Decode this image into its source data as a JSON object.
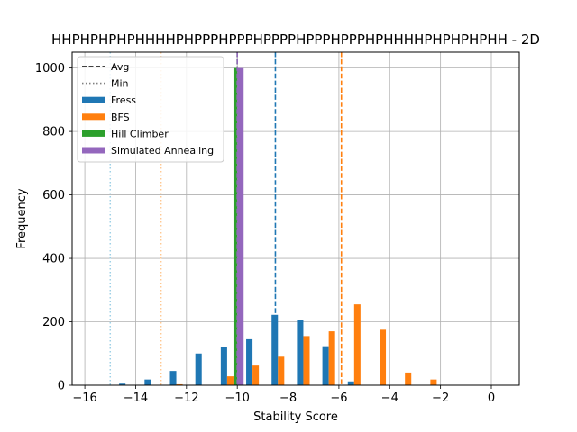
{
  "chart_data": {
    "type": "bar",
    "title": "HHPHPHPHPHHHHPHPPPHPPPHPPPPHPPPHPPPHPHHHHPHPHPHPHH - 2D",
    "xlabel": "Stability Score",
    "ylabel": "Frequency",
    "xlim": [
      -16.5,
      1.1
    ],
    "ylim": [
      0,
      1050
    ],
    "xticks": [
      -16,
      -14,
      -12,
      -10,
      -8,
      -6,
      -4,
      -2,
      0
    ],
    "yticks": [
      0,
      200,
      400,
      600,
      800,
      1000
    ],
    "grid": true,
    "legend_placement": "top-left",
    "bin_centers": [
      -14.4,
      -13.4,
      -12.4,
      -11.4,
      -10.4,
      -9.4,
      -8.4,
      -7.4,
      -6.4,
      -5.4,
      -4.4,
      -3.4,
      -2.4
    ],
    "series": [
      {
        "name": "Fress",
        "color": "#1f77b4",
        "x": [
          -14.4,
          -13.4,
          -12.4,
          -11.4,
          -10.4,
          -9.4,
          -8.4,
          -7.4,
          -6.4,
          -5.4
        ],
        "values": [
          5,
          18,
          45,
          100,
          120,
          145,
          222,
          205,
          123,
          12
        ]
      },
      {
        "name": "BFS",
        "color": "#ff7f0e",
        "x": [
          -12.4,
          -10.4,
          -9.4,
          -8.4,
          -7.4,
          -6.4,
          -5.4,
          -4.4,
          -3.4,
          -2.4
        ],
        "values": [
          3,
          28,
          62,
          90,
          155,
          170,
          255,
          175,
          40,
          18
        ]
      },
      {
        "name": "Hill Climber",
        "color": "#2ca02c",
        "x": [
          -10
        ],
        "values": [
          1000
        ]
      },
      {
        "name": "Simulated Annealing",
        "color": "#9467bd",
        "x": [
          -10
        ],
        "values": [
          1000
        ]
      }
    ],
    "avg_lines": [
      {
        "series": "Fress",
        "x": -8.5,
        "color": "#1f77b4"
      },
      {
        "series": "BFS",
        "x": -5.9,
        "color": "#ff7f0e"
      },
      {
        "series": "Hill Climber",
        "x": -10.0,
        "color": "#2ca02c"
      },
      {
        "series": "Simulated Annealing",
        "x": -10.0,
        "color": "#9467bd"
      }
    ],
    "min_lines": [
      {
        "series": "Fress",
        "x": -15,
        "color": "#9ed0e6"
      },
      {
        "series": "BFS",
        "x": -13,
        "color": "#ffc892"
      },
      {
        "series": "Hill Climber",
        "x": -10,
        "color": "#98df8a"
      },
      {
        "series": "Simulated Annealing",
        "x": -10,
        "color": "#c5b0d5"
      }
    ],
    "legend": [
      {
        "label": "Avg",
        "kind": "dashed-line",
        "color": "#000000"
      },
      {
        "label": "Min",
        "kind": "dotted-line",
        "color": "#808080"
      },
      {
        "label": "Fress",
        "kind": "patch",
        "color": "#1f77b4"
      },
      {
        "label": "BFS",
        "kind": "patch",
        "color": "#ff7f0e"
      },
      {
        "label": "Hill Climber",
        "kind": "patch",
        "color": "#2ca02c"
      },
      {
        "label": "Simulated Annealing",
        "kind": "patch",
        "color": "#9467bd"
      }
    ]
  }
}
